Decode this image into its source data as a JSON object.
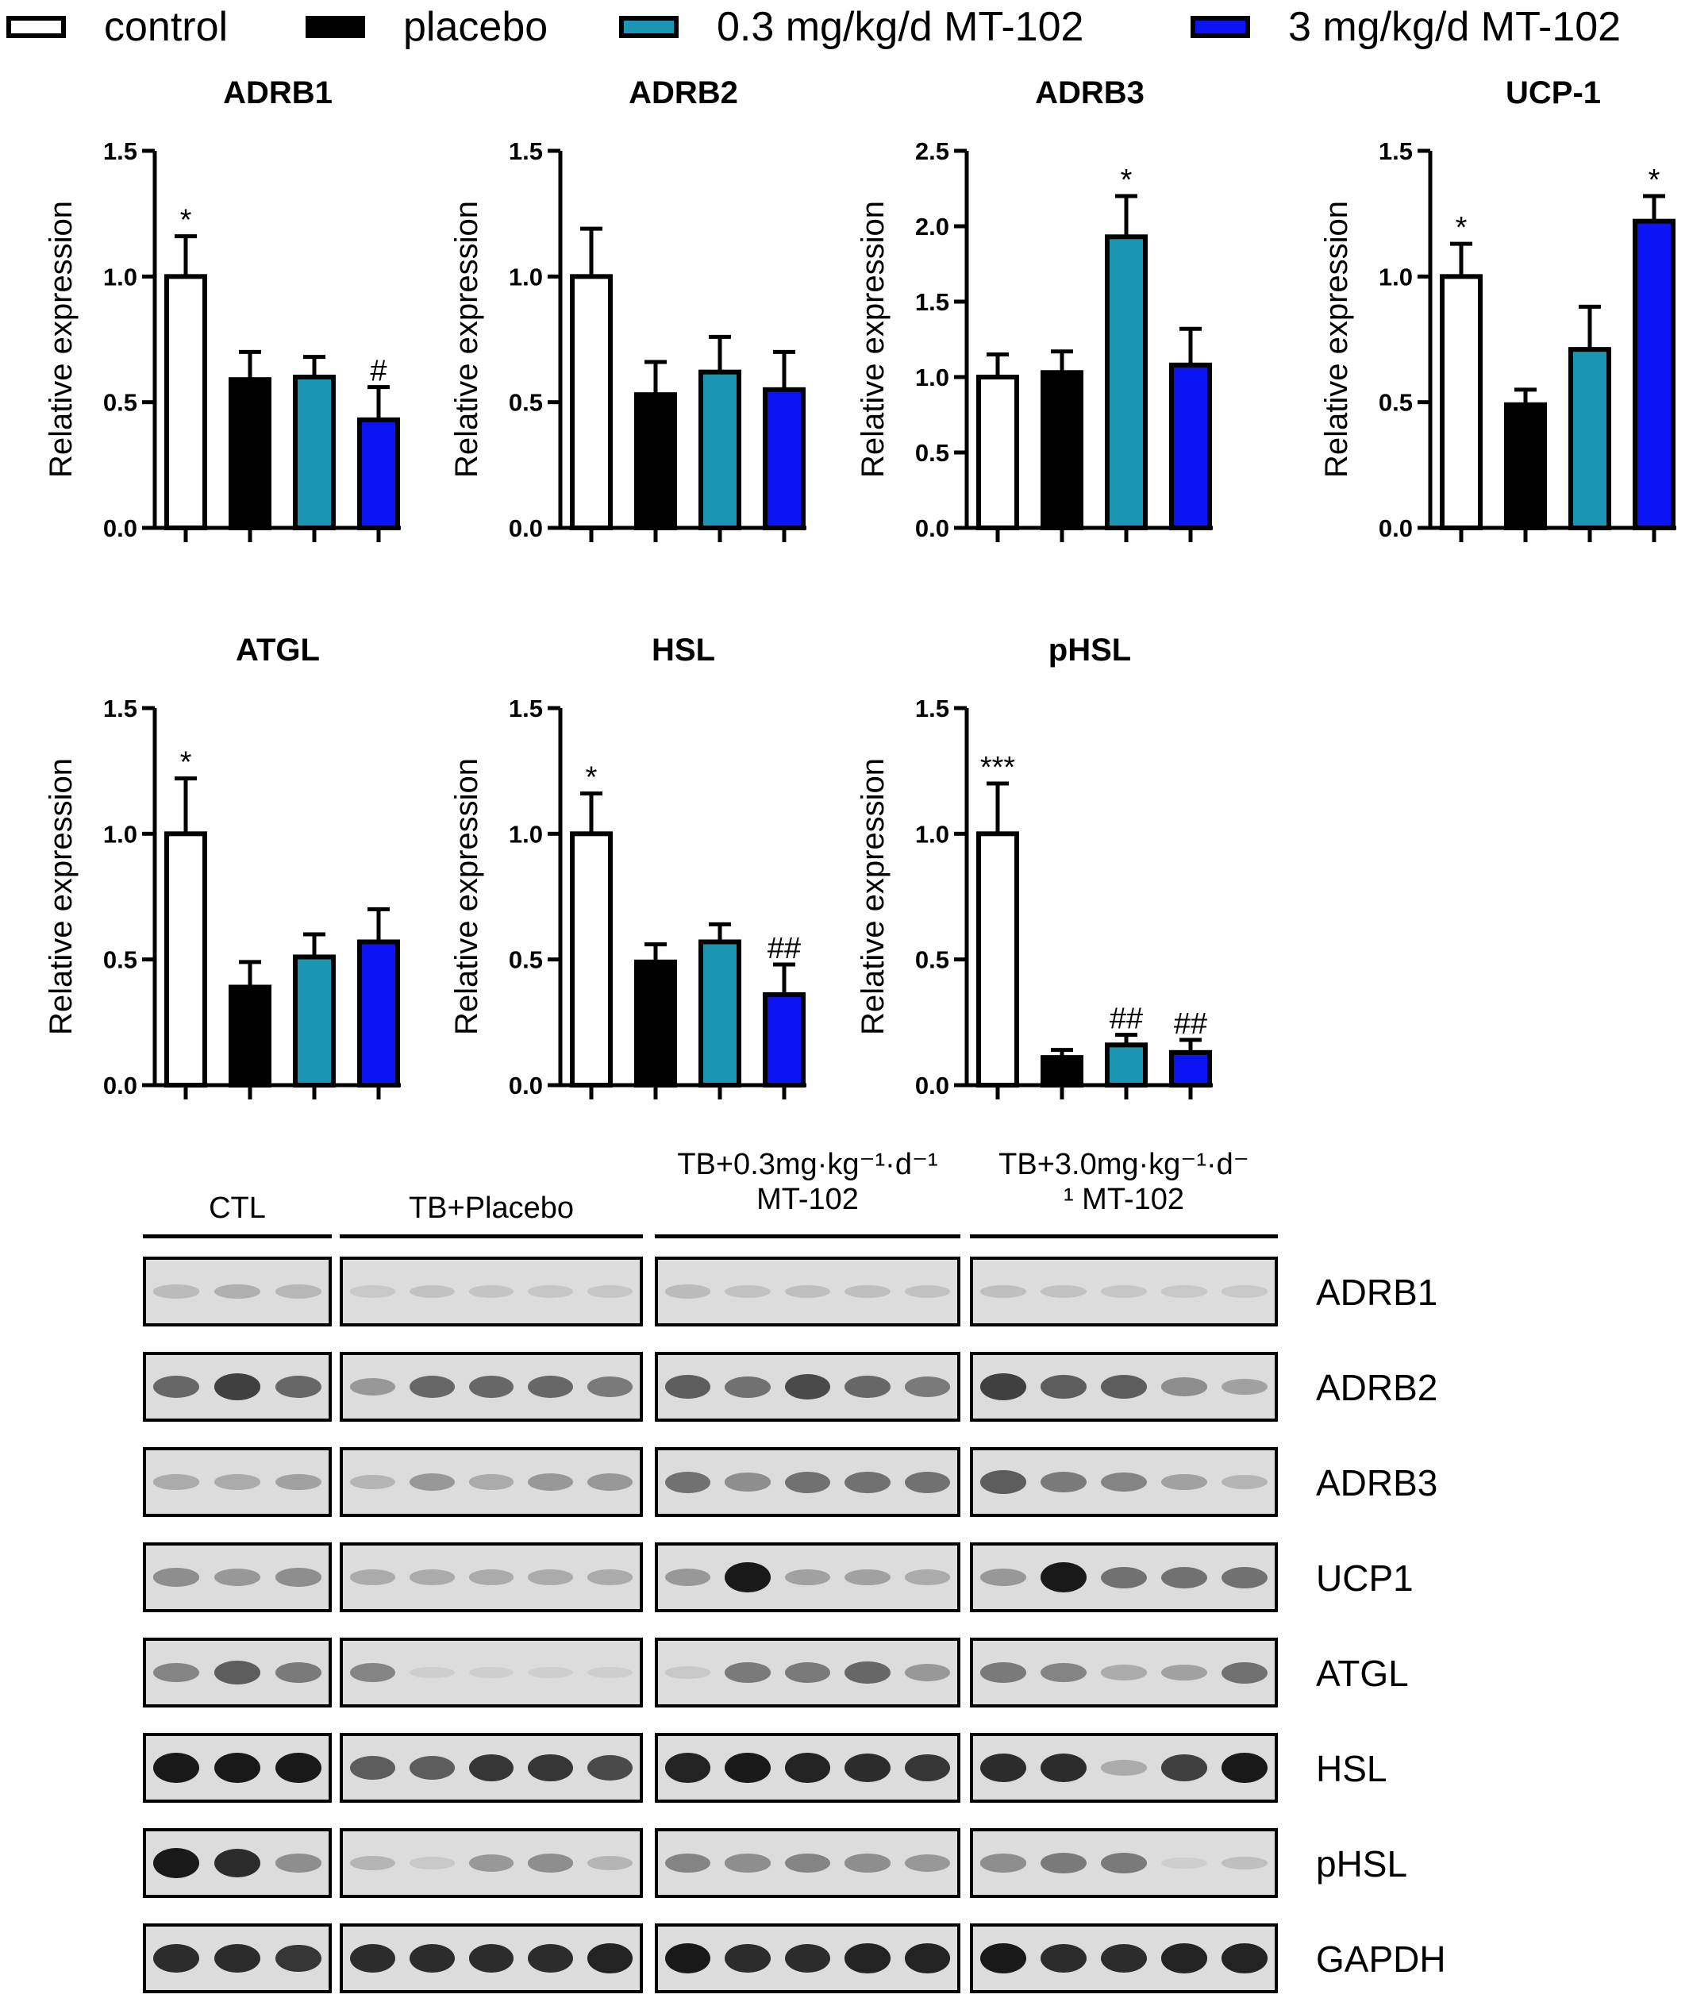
{
  "legend": [
    {
      "label": "control",
      "fill": "#ffffff"
    },
    {
      "label": "placebo",
      "fill": "#000000"
    },
    {
      "label": "0.3 mg/kg/d MT-102",
      "fill": "#1a96b4"
    },
    {
      "label": "3 mg/kg/d MT-102",
      "fill": "#0a14f5"
    }
  ],
  "chart_data": [
    {
      "type": "bar",
      "title": "ADRB1",
      "ylabel": "Relative expression",
      "ylim": [
        0,
        1.5
      ],
      "yticks": [
        "0.0",
        "0.5",
        "1.0",
        "1.5"
      ],
      "series": [
        {
          "values": [
            1.0,
            0.59,
            0.6,
            0.43
          ],
          "errors": [
            0.16,
            0.11,
            0.08,
            0.13
          ],
          "annotations": [
            "*",
            "",
            "",
            "#"
          ]
        }
      ]
    },
    {
      "type": "bar",
      "title": "ADRB2",
      "ylabel": "Relative expression",
      "ylim": [
        0,
        1.5
      ],
      "yticks": [
        "0.0",
        "0.5",
        "1.0",
        "1.5"
      ],
      "series": [
        {
          "values": [
            1.0,
            0.53,
            0.62,
            0.55
          ],
          "errors": [
            0.19,
            0.13,
            0.14,
            0.15
          ],
          "annotations": [
            "",
            "",
            "",
            ""
          ]
        }
      ]
    },
    {
      "type": "bar",
      "title": "ADRB3",
      "ylabel": "Relative expression",
      "ylim": [
        0,
        2.5
      ],
      "yticks": [
        "0.0",
        "0.5",
        "1.0",
        "1.5",
        "2.0",
        "2.5"
      ],
      "series": [
        {
          "values": [
            1.0,
            1.03,
            1.93,
            1.08
          ],
          "errors": [
            0.15,
            0.14,
            0.27,
            0.24
          ],
          "annotations": [
            "",
            "",
            "*",
            ""
          ]
        }
      ]
    },
    {
      "type": "bar",
      "title": "UCP-1",
      "ylabel": "Relative expression",
      "ylim": [
        0,
        1.5
      ],
      "yticks": [
        "0.0",
        "0.5",
        "1.0",
        "1.5"
      ],
      "series": [
        {
          "values": [
            1.0,
            0.49,
            0.71,
            1.22
          ],
          "errors": [
            0.13,
            0.06,
            0.17,
            0.1
          ],
          "annotations": [
            "*",
            "",
            "",
            "*"
          ]
        }
      ]
    },
    {
      "type": "bar",
      "title": "ATGL",
      "ylabel": "Relative expression",
      "ylim": [
        0,
        1.5
      ],
      "yticks": [
        "0.0",
        "0.5",
        "1.0",
        "1.5"
      ],
      "series": [
        {
          "values": [
            1.0,
            0.39,
            0.51,
            0.57
          ],
          "errors": [
            0.22,
            0.1,
            0.09,
            0.13
          ],
          "annotations": [
            "*",
            "",
            "",
            ""
          ]
        }
      ]
    },
    {
      "type": "bar",
      "title": "HSL",
      "ylabel": "Relative expression",
      "ylim": [
        0,
        1.5
      ],
      "yticks": [
        "0.0",
        "0.5",
        "1.0",
        "1.5"
      ],
      "series": [
        {
          "values": [
            1.0,
            0.49,
            0.57,
            0.36
          ],
          "errors": [
            0.16,
            0.07,
            0.07,
            0.12
          ],
          "annotations": [
            "*",
            "",
            "",
            "##"
          ]
        }
      ]
    },
    {
      "type": "bar",
      "title": "pHSL",
      "ylabel": "Relative expression",
      "ylim": [
        0,
        1.5
      ],
      "yticks": [
        "0.0",
        "0.5",
        "1.0",
        "1.5"
      ],
      "series": [
        {
          "values": [
            1.0,
            0.11,
            0.16,
            0.13
          ],
          "errors": [
            0.2,
            0.03,
            0.04,
            0.05
          ],
          "annotations": [
            "***",
            "",
            "##",
            "##"
          ]
        }
      ]
    }
  ],
  "blot": {
    "groups": [
      {
        "label": [
          "CTL"
        ],
        "lanes": 3
      },
      {
        "label": [
          "TB+Placebo"
        ],
        "lanes": 5
      },
      {
        "label": [
          "TB+0.3mg·kg⁻¹·d⁻¹",
          "MT-102"
        ],
        "lanes": 5
      },
      {
        "label": [
          "TB+3.0mg·kg⁻¹·d⁻",
          "¹ MT-102"
        ],
        "lanes": 5
      }
    ],
    "rows": [
      {
        "protein": "ADRB1",
        "intensity": [
          0.12,
          0.18,
          0.14,
          0.05,
          0.08,
          0.07,
          0.06,
          0.06,
          0.12,
          0.08,
          0.1,
          0.1,
          0.08,
          0.1,
          0.08,
          0.06,
          0.05,
          0.05
        ]
      },
      {
        "protein": "ADRB2",
        "intensity": [
          0.55,
          0.75,
          0.55,
          0.3,
          0.55,
          0.55,
          0.55,
          0.45,
          0.6,
          0.5,
          0.7,
          0.55,
          0.45,
          0.75,
          0.6,
          0.6,
          0.35,
          0.25
        ]
      },
      {
        "protein": "ADRB3",
        "intensity": [
          0.2,
          0.2,
          0.25,
          0.15,
          0.3,
          0.2,
          0.3,
          0.3,
          0.5,
          0.35,
          0.5,
          0.5,
          0.5,
          0.6,
          0.45,
          0.4,
          0.25,
          0.15
        ]
      },
      {
        "protein": "UCP1",
        "intensity": [
          0.35,
          0.3,
          0.35,
          0.2,
          0.2,
          0.2,
          0.2,
          0.2,
          0.3,
          0.95,
          0.25,
          0.25,
          0.2,
          0.3,
          0.95,
          0.5,
          0.5,
          0.5
        ]
      },
      {
        "protein": "ATGL",
        "intensity": [
          0.4,
          0.6,
          0.45,
          0.4,
          0.02,
          0.02,
          0.02,
          0.02,
          0.05,
          0.45,
          0.45,
          0.55,
          0.3,
          0.45,
          0.4,
          0.2,
          0.25,
          0.5
        ]
      },
      {
        "protein": "HSL",
        "intensity": [
          0.95,
          0.95,
          0.95,
          0.6,
          0.6,
          0.8,
          0.8,
          0.7,
          0.9,
          0.95,
          0.9,
          0.85,
          0.8,
          0.85,
          0.85,
          0.2,
          0.75,
          0.95
        ]
      },
      {
        "protein": "pHSL",
        "intensity": [
          0.95,
          0.85,
          0.35,
          0.15,
          0.05,
          0.3,
          0.35,
          0.15,
          0.4,
          0.35,
          0.4,
          0.35,
          0.3,
          0.35,
          0.45,
          0.45,
          0.02,
          0.1
        ]
      },
      {
        "protein": "GAPDH",
        "intensity": [
          0.85,
          0.85,
          0.8,
          0.85,
          0.85,
          0.85,
          0.85,
          0.9,
          0.95,
          0.85,
          0.85,
          0.9,
          0.9,
          0.95,
          0.85,
          0.85,
          0.9,
          0.9
        ]
      }
    ]
  }
}
